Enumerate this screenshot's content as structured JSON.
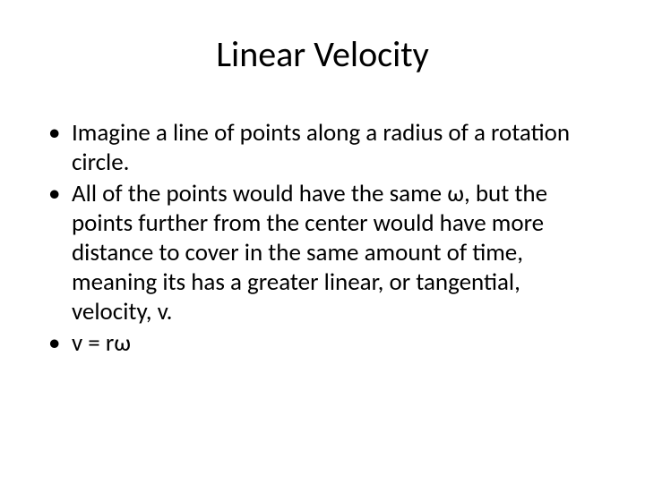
{
  "slide": {
    "title": "Linear Velocity",
    "bullets": [
      "Imagine a line of points along a radius of a rotation circle.",
      "All of the points would have the same ω, but the points further from the center would have more distance to cover in the same amount of time, meaning its has a greater linear, or tangential, velocity, v.",
      "v = rω"
    ],
    "title_fontsize": 40,
    "body_fontsize": 27,
    "text_color": "#000000",
    "background_color": "#ffffff"
  }
}
